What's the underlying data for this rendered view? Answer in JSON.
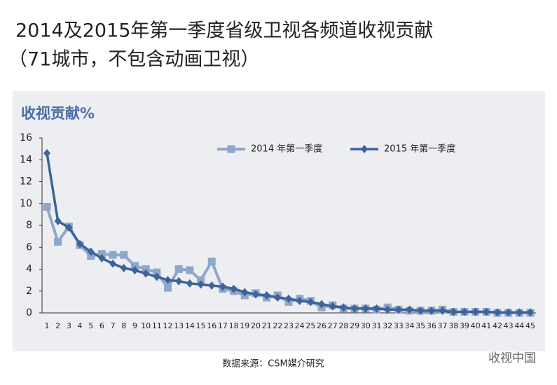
{
  "chart_data": {
    "type": "line",
    "title": "2014及2015年第一季度省级卫视各频道收视贡献",
    "subtitle": "（71城市，不包含动画卫视）",
    "y_label": "收视贡献%",
    "categories": [
      "1",
      "2",
      "3",
      "4",
      "5",
      "6",
      "7",
      "8",
      "9",
      "10",
      "11",
      "12",
      "13",
      "14",
      "15",
      "16",
      "17",
      "18",
      "19",
      "20",
      "21",
      "22",
      "23",
      "24",
      "25",
      "26",
      "27",
      "28",
      "29",
      "30",
      "31",
      "32",
      "33",
      "34",
      "35",
      "36",
      "37",
      "38",
      "39",
      "40",
      "41",
      "42",
      "43",
      "44",
      "45"
    ],
    "series": [
      {
        "name": "2014 年第一季度",
        "color": "#8ea6c9",
        "marker": "square",
        "values": [
          9.7,
          6.5,
          7.9,
          6.2,
          5.2,
          5.4,
          5.3,
          5.3,
          4.3,
          4.0,
          3.7,
          2.3,
          4.0,
          3.9,
          3.0,
          4.7,
          2.2,
          2.0,
          1.6,
          1.8,
          1.4,
          1.6,
          1.0,
          1.3,
          1.1,
          0.5,
          0.7,
          0.4,
          0.4,
          0.4,
          0.3,
          0.5,
          0.3,
          0.2,
          0.2,
          0.2,
          0.3,
          0.1,
          0.1,
          0.1,
          0.1,
          0,
          0,
          0,
          0
        ]
      },
      {
        "name": "2015 年第一季度",
        "color": "#3d6399",
        "marker": "diamond",
        "values": [
          14.6,
          8.4,
          7.8,
          6.3,
          5.6,
          5.0,
          4.5,
          4.1,
          3.9,
          3.6,
          3.3,
          3.0,
          2.9,
          2.7,
          2.6,
          2.5,
          2.4,
          2.2,
          1.9,
          1.7,
          1.6,
          1.4,
          1.3,
          1.1,
          1.0,
          0.8,
          0.6,
          0.5,
          0.4,
          0.4,
          0.4,
          0.3,
          0.3,
          0.3,
          0.2,
          0.2,
          0.2,
          0.1,
          0.1,
          0.1,
          0.1,
          0.05,
          0.05,
          0.05,
          0.05
        ]
      }
    ],
    "ylim": [
      0,
      16
    ],
    "yticks": [
      0,
      2,
      4,
      6,
      8,
      10,
      12,
      14,
      16
    ],
    "grid": false,
    "legend": "top",
    "source": "数据来源：CSM媒介研究",
    "watermark": "收视中国"
  }
}
